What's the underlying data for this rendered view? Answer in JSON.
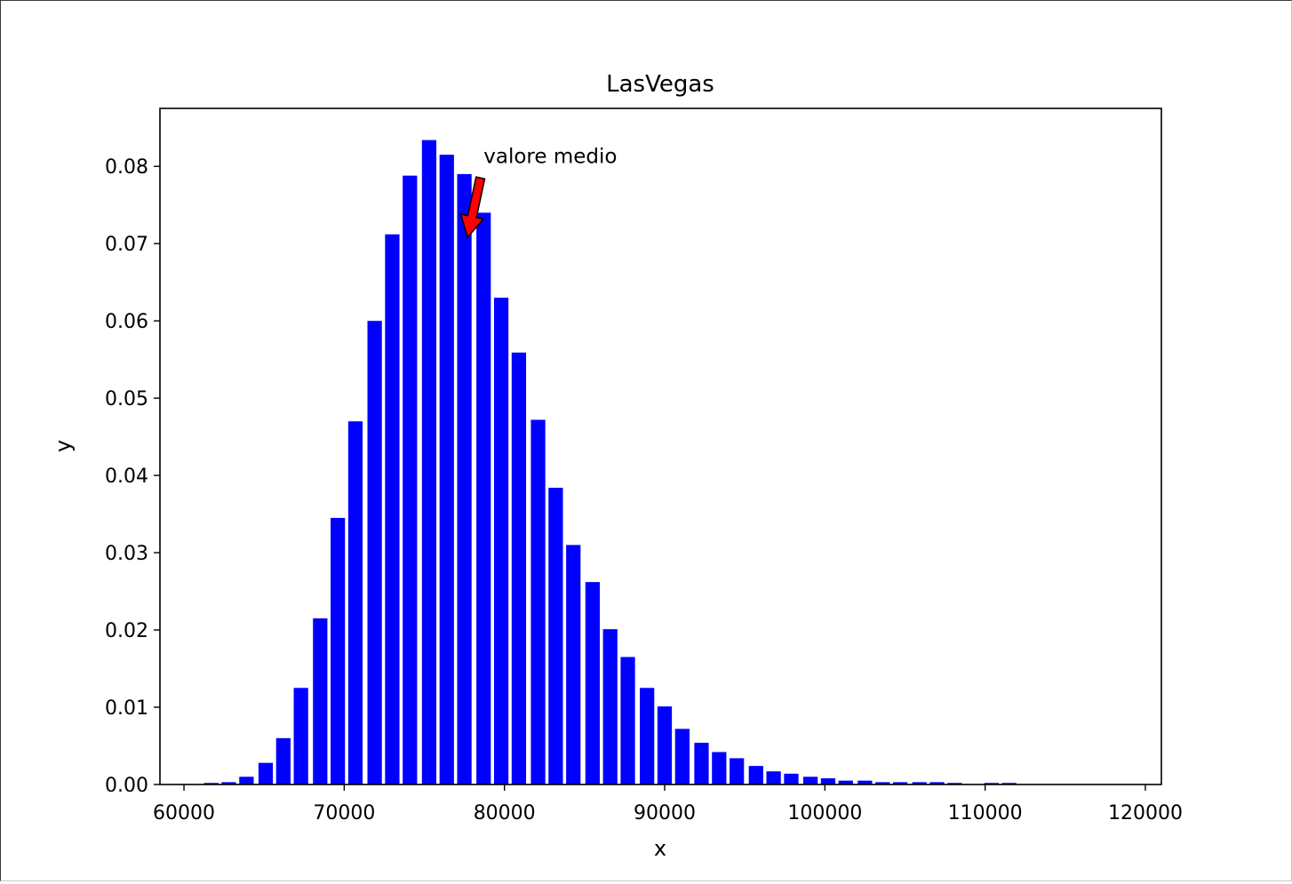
{
  "chart_data": {
    "type": "bar",
    "title": "LasVegas",
    "xlabel": "x",
    "ylabel": "y",
    "xlim": [
      58500,
      121000
    ],
    "ylim": [
      0,
      0.0875
    ],
    "xticks": [
      60000,
      70000,
      80000,
      90000,
      100000,
      110000,
      120000
    ],
    "xtick_labels": [
      "60000",
      "70000",
      "80000",
      "90000",
      "100000",
      "110000",
      "120000"
    ],
    "yticks": [
      0,
      0.01,
      0.02,
      0.03,
      0.04,
      0.05,
      0.06,
      0.07,
      0.08
    ],
    "ytick_labels": [
      "0.00",
      "0.01",
      "0.02",
      "0.03",
      "0.04",
      "0.05",
      "0.06",
      "0.07",
      "0.08"
    ],
    "bar_color": "#0000ff",
    "bar_width": 900,
    "x": [
      61700,
      62800,
      63900,
      65100,
      66200,
      67300,
      68500,
      69600,
      70700,
      71900,
      73000,
      74100,
      75300,
      76400,
      77500,
      78700,
      79800,
      80900,
      82100,
      83200,
      84300,
      85500,
      86600,
      87700,
      88900,
      90000,
      91100,
      92300,
      93400,
      94500,
      95700,
      96800,
      97900,
      99100,
      100200,
      101300,
      102500,
      103600,
      104700,
      105900,
      107000,
      108100,
      110400,
      111500
    ],
    "values": [
      0.0002,
      0.0003,
      0.001,
      0.0028,
      0.006,
      0.0125,
      0.0215,
      0.0345,
      0.047,
      0.06,
      0.0712,
      0.0788,
      0.0834,
      0.0815,
      0.079,
      0.074,
      0.063,
      0.0559,
      0.0472,
      0.0384,
      0.031,
      0.0262,
      0.0201,
      0.0165,
      0.0125,
      0.0101,
      0.0072,
      0.0054,
      0.0042,
      0.0034,
      0.0024,
      0.0017,
      0.0014,
      0.001,
      0.0008,
      0.0005,
      0.0005,
      0.0003,
      0.0003,
      0.0003,
      0.0003,
      0.0002,
      0.0002,
      0.0002
    ],
    "annotations": [
      {
        "text": "valore medio",
        "text_x": 78700,
        "text_y": 0.0804,
        "arrow_from_x": 78500,
        "arrow_from_y": 0.0785,
        "arrow_to_x": 77700,
        "arrow_to_y": 0.0708,
        "arrow_color": "#ff0000"
      }
    ],
    "grid": false,
    "legend": "none"
  }
}
